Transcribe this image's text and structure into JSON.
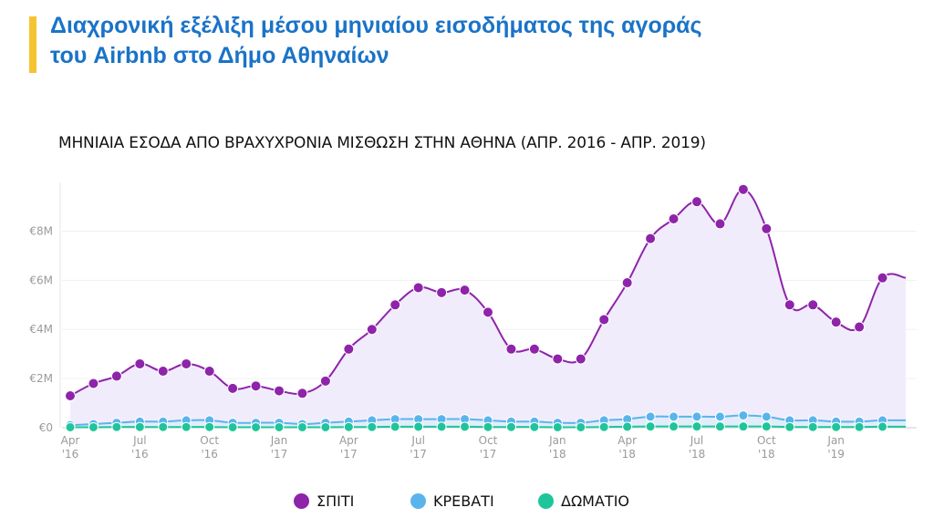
{
  "slide": {
    "title_line1": "Διαχρονική εξέλιξη μέσου μηνιαίου εισοδήματος της αγοράς",
    "title_line2": "του Airbnb στο Δήμο Αθηναίων",
    "accent_color": "#f5c431",
    "title_color": "#1a73c8"
  },
  "chart_data": {
    "type": "line",
    "title": "ΜΗΝΙΑΙΑ ΕΣΟΔΑ ΑΠΟ ΒΡΑΧΥΧΡΟΝΙΑ ΜΙΣΘΩΣΗ ΣΤΗΝ ΑΘΗΝΑ (ΑΠΡ. 2016 - ΑΠΡ. 2019)",
    "xlabel": "",
    "ylabel": "",
    "ylim": [
      0,
      9.8
    ],
    "y_unit": "million EUR",
    "y_ticks": [
      {
        "value": 0,
        "label": "€0"
      },
      {
        "value": 2,
        "label": "€2M"
      },
      {
        "value": 4,
        "label": "€4M"
      },
      {
        "value": 6,
        "label": "€6M"
      },
      {
        "value": 8,
        "label": "€8M"
      }
    ],
    "x_ticks": [
      {
        "index": 0,
        "line1": "Apr",
        "line2": "'16"
      },
      {
        "index": 3,
        "line1": "Jul",
        "line2": "'16"
      },
      {
        "index": 6,
        "line1": "Oct",
        "line2": "'16"
      },
      {
        "index": 9,
        "line1": "Jan",
        "line2": "'17"
      },
      {
        "index": 12,
        "line1": "Apr",
        "line2": "'17"
      },
      {
        "index": 15,
        "line1": "Jul",
        "line2": "'17"
      },
      {
        "index": 18,
        "line1": "Oct",
        "line2": "'17"
      },
      {
        "index": 21,
        "line1": "Jan",
        "line2": "'18"
      },
      {
        "index": 24,
        "line1": "Apr",
        "line2": "'18"
      },
      {
        "index": 27,
        "line1": "Jul",
        "line2": "'18"
      },
      {
        "index": 30,
        "line1": "Oct",
        "line2": "'18"
      },
      {
        "index": 33,
        "line1": "Jan",
        "line2": "'19"
      }
    ],
    "x": [
      "2016-04",
      "2016-05",
      "2016-06",
      "2016-07",
      "2016-08",
      "2016-09",
      "2016-10",
      "2016-11",
      "2016-12",
      "2017-01",
      "2017-02",
      "2017-03",
      "2017-04",
      "2017-05",
      "2017-06",
      "2017-07",
      "2017-08",
      "2017-09",
      "2017-10",
      "2017-11",
      "2017-12",
      "2018-01",
      "2018-02",
      "2018-03",
      "2018-04",
      "2018-05",
      "2018-06",
      "2018-07",
      "2018-08",
      "2018-09",
      "2018-10",
      "2018-11",
      "2018-12",
      "2019-01",
      "2019-02",
      "2019-03",
      "2019-04"
    ],
    "series": [
      {
        "name": "ΣΠΙΤΙ",
        "color": "#8e24aa",
        "fill": "#efeafb",
        "values": [
          1.3,
          1.8,
          2.1,
          2.6,
          2.3,
          2.6,
          2.3,
          1.6,
          1.7,
          1.5,
          1.4,
          1.9,
          3.2,
          4.0,
          5.0,
          5.7,
          5.5,
          5.6,
          4.7,
          3.2,
          3.2,
          2.8,
          2.8,
          4.4,
          5.9,
          7.7,
          8.5,
          9.2,
          8.3,
          9.7,
          8.1,
          5.0,
          5.0,
          4.3,
          4.1,
          6.1,
          6.1
        ]
      },
      {
        "name": "ΚΡΕΒΑΤΙ",
        "color": "#5ab4ec",
        "fill": "#d9eefb",
        "values": [
          0.1,
          0.15,
          0.2,
          0.25,
          0.25,
          0.3,
          0.3,
          0.2,
          0.2,
          0.2,
          0.15,
          0.2,
          0.25,
          0.3,
          0.35,
          0.35,
          0.35,
          0.35,
          0.3,
          0.25,
          0.25,
          0.2,
          0.2,
          0.3,
          0.35,
          0.45,
          0.45,
          0.45,
          0.45,
          0.5,
          0.45,
          0.3,
          0.3,
          0.25,
          0.25,
          0.3,
          0.3
        ]
      },
      {
        "name": "ΔΩΜΑΤΙΟ",
        "color": "#1fc59a",
        "fill": "#d7f5ec",
        "values": [
          0.02,
          0.02,
          0.03,
          0.03,
          0.03,
          0.03,
          0.03,
          0.02,
          0.02,
          0.02,
          0.02,
          0.02,
          0.03,
          0.03,
          0.04,
          0.04,
          0.04,
          0.04,
          0.03,
          0.03,
          0.03,
          0.02,
          0.02,
          0.03,
          0.04,
          0.05,
          0.05,
          0.05,
          0.05,
          0.05,
          0.05,
          0.03,
          0.03,
          0.03,
          0.03,
          0.04,
          0.04
        ]
      }
    ],
    "legend_position": "bottom-center",
    "grid": true
  }
}
